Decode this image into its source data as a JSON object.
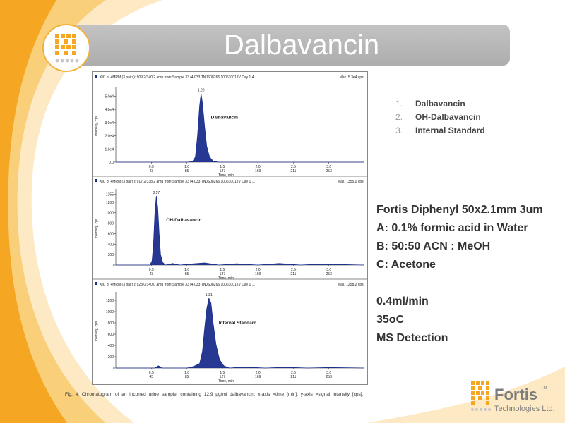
{
  "slide": {
    "title": "Dalbavancin",
    "compounds": [
      {
        "num": "1.",
        "name": "Dalbavancin"
      },
      {
        "num": "2.",
        "name": "OH-Dalbavancin"
      },
      {
        "num": "3.",
        "name": "Internal Standard"
      }
    ],
    "method_lines": [
      "Fortis Diphenyl  50x2.1mm 3um",
      "A: 0.1% formic acid in Water",
      "B: 50:50 ACN : MeOH",
      "C: Acetone"
    ],
    "conditions": [
      "0.4ml/min",
      "35oC",
      "MS Detection"
    ],
    "caption": "Fig. 4.  Chromatogram   of an incurred  urine sample,  containing   12.9 µg/ml  dalbavancin;   x-axis  =time  [min],  y-axis  =signal  intensity   [cps].",
    "brand": {
      "name": "Fortis",
      "tm": "TM",
      "subtitle": "Technologies Ltd."
    },
    "colors": {
      "accent": "#f5a623",
      "peak_fill": "#1a2d8c",
      "title_bar": "#b5b5b5"
    }
  },
  "chart_data": [
    {
      "type": "line",
      "header": "XIC of +MRM (3 pairs): 909.2/340.2 amu from Sample 33 (4 033 TNJS08266 10061001 IV Day 1 4...",
      "max_label": "Max. 5.3e4 cps.",
      "ylabel": "Intensity, cps",
      "xlabel": "Time, min",
      "xlim": [
        0,
        3.5
      ],
      "ylim": [
        0,
        55000
      ],
      "y_ticks": [
        0,
        10000,
        20000,
        30000,
        40000,
        50000
      ],
      "y_tick_labels": [
        "0.0",
        "1.0e4",
        "2.0e4",
        "3.0e4",
        "4.0e4",
        "5.0e4"
      ],
      "x_ticks": [
        0.5,
        1.0,
        1.5,
        2.0,
        2.5,
        3.0
      ],
      "x_tick_labels": [
        "0.5",
        "1.0",
        "1.5",
        "2.0",
        "2.5",
        "3.0"
      ],
      "x_scan_labels": [
        "43",
        "85",
        "127",
        "169",
        "211",
        "253"
      ],
      "peak_label": "1.20",
      "compound_label": "Dalbavancin",
      "x": [
        0.0,
        1.0,
        1.08,
        1.12,
        1.15,
        1.18,
        1.2,
        1.22,
        1.25,
        1.28,
        1.32,
        1.37,
        1.45,
        3.5
      ],
      "y": [
        0,
        0,
        500,
        4000,
        20000,
        43000,
        52000,
        45000,
        27000,
        12000,
        4000,
        800,
        0,
        0
      ]
    },
    {
      "type": "line",
      "header": "XIC of +MRM (3 pairs): 917.2/338.2 amu from Sample 33 (4 033 TNJS08266 10061001 IV Day 1 ...",
      "max_label": "Max. 1355.0 cps.",
      "ylabel": "Intensity, cps",
      "xlabel": "Time, min",
      "xlim": [
        0,
        3.5
      ],
      "ylim": [
        0,
        1400
      ],
      "y_ticks": [
        0,
        200,
        400,
        600,
        800,
        1000,
        1200,
        1355
      ],
      "y_tick_labels": [
        "0",
        "200",
        "400",
        "600",
        "800",
        "1000",
        "1200",
        "1355"
      ],
      "x_ticks": [
        0.5,
        1.0,
        1.5,
        2.0,
        2.5,
        3.0
      ],
      "x_tick_labels": [
        "0.5",
        "1.0",
        "1.5",
        "2.0",
        "2.5",
        "3.0"
      ],
      "x_scan_labels": [
        "43",
        "85",
        "127",
        "169",
        "211",
        "253"
      ],
      "peak_label": "0.57",
      "compound_label": "OH-Dalbavancin",
      "x": [
        0.0,
        0.48,
        0.51,
        0.53,
        0.55,
        0.57,
        0.59,
        0.61,
        0.63,
        0.66,
        0.7,
        0.8,
        0.9,
        1.05,
        1.25,
        1.45,
        1.7,
        2.0,
        2.3,
        2.6,
        2.9,
        3.5
      ],
      "y": [
        0,
        0,
        80,
        400,
        1000,
        1320,
        1100,
        600,
        200,
        50,
        0,
        30,
        0,
        20,
        40,
        0,
        25,
        0,
        30,
        0,
        20,
        0
      ]
    },
    {
      "type": "line",
      "header": "XIC of +MRM (3 pairs): 923.0/340.0 amu from Sample 33 (4 033 TNJS08266 10061001 IV Day 1 ...",
      "max_label": "Max. 1258.2 cps.",
      "ylabel": "Intensity, cps",
      "xlabel": "Time, min",
      "xlim": [
        0,
        3.5
      ],
      "ylim": [
        0,
        1300
      ],
      "y_ticks": [
        0,
        200,
        400,
        600,
        800,
        1000,
        1200
      ],
      "y_tick_labels": [
        "0",
        "200",
        "400",
        "600",
        "800",
        "1000",
        "1200"
      ],
      "x_ticks": [
        0.5,
        1.0,
        1.5,
        2.0,
        2.5,
        3.0
      ],
      "x_tick_labels": [
        "0.5",
        "1.0",
        "1.5",
        "2.0",
        "2.5",
        "3.0"
      ],
      "x_scan_labels": [
        "43",
        "85",
        "127",
        "169",
        "211",
        "253"
      ],
      "peak_label": "1.31",
      "compound_label": "Internal Standard",
      "x": [
        0.0,
        0.55,
        0.6,
        0.65,
        1.0,
        1.1,
        1.18,
        1.22,
        1.25,
        1.28,
        1.31,
        1.34,
        1.37,
        1.41,
        1.46,
        1.52,
        1.6,
        1.8,
        2.1,
        2.4,
        2.7,
        3.0,
        3.5
      ],
      "y": [
        0,
        0,
        40,
        0,
        0,
        30,
        80,
        300,
        700,
        1050,
        1240,
        1150,
        800,
        420,
        150,
        40,
        0,
        20,
        0,
        15,
        0,
        10,
        0
      ]
    }
  ]
}
